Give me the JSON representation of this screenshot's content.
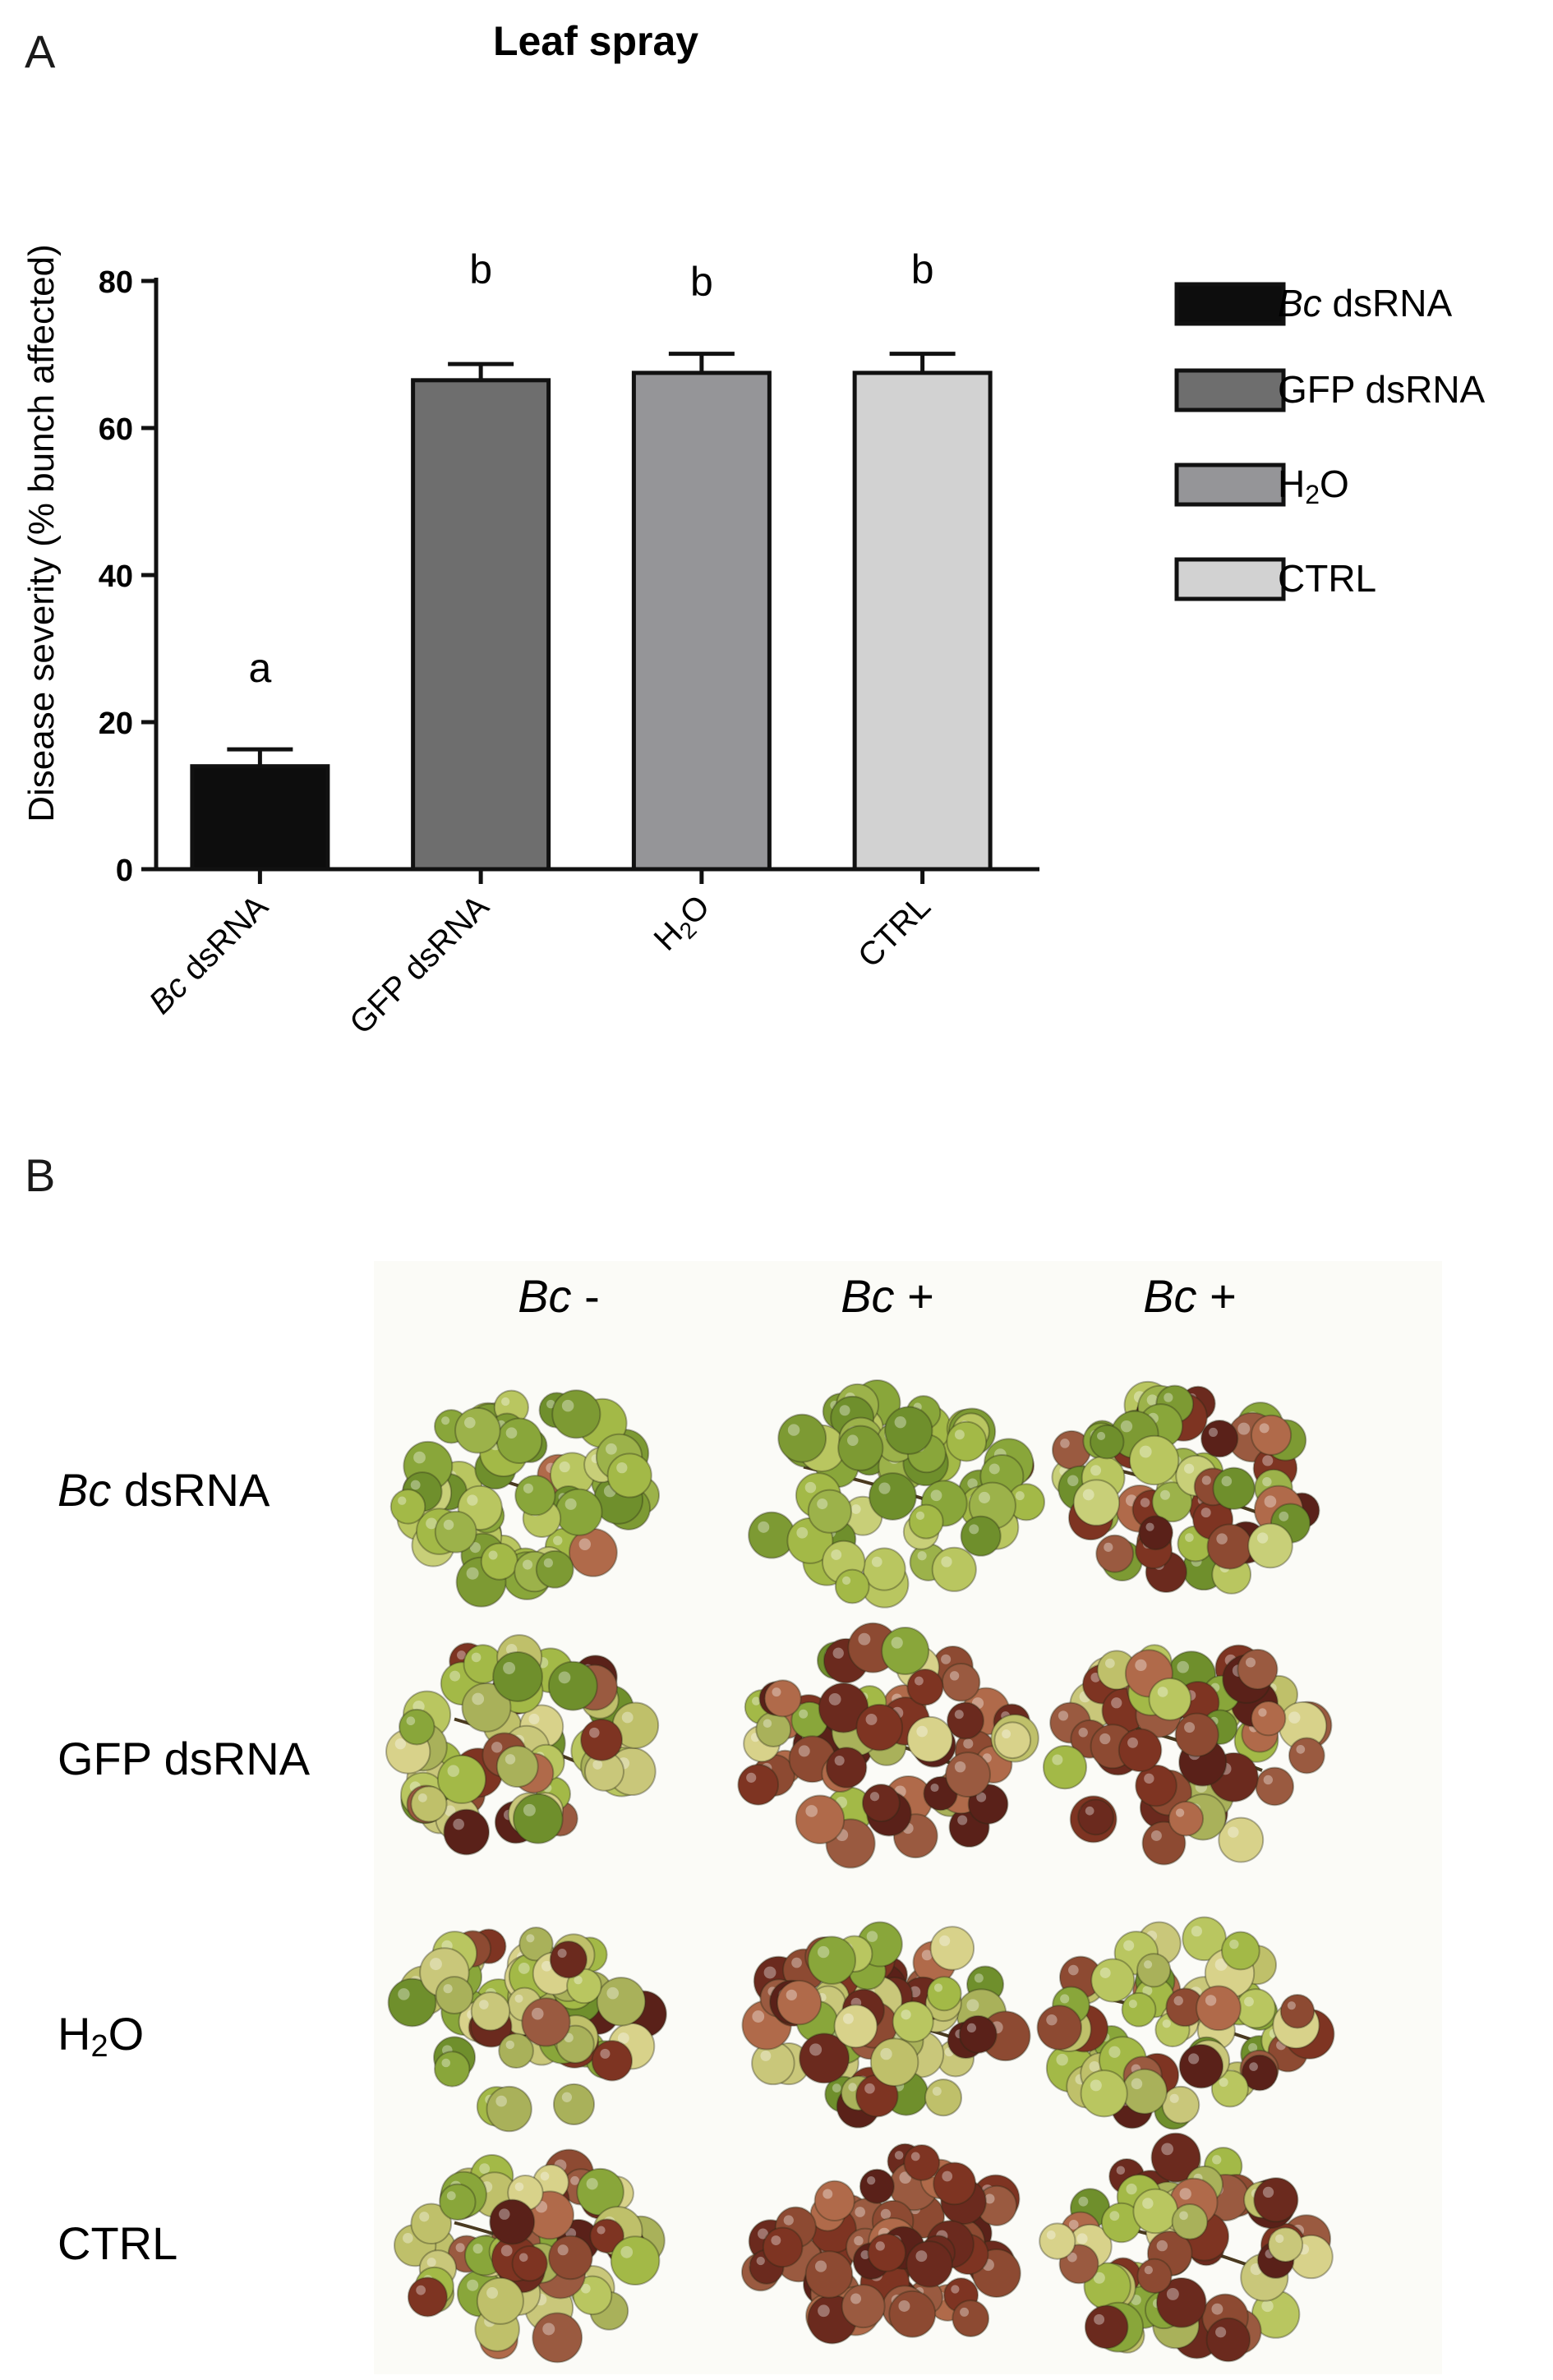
{
  "panel_a": {
    "letter": "A",
    "chart_data": {
      "type": "bar",
      "title": "Leaf spray",
      "xlabel": "",
      "ylabel": "Disease severity (% bunch affected)",
      "ylim": [
        0,
        80
      ],
      "yticks": [
        0,
        20,
        40,
        60,
        80
      ],
      "grid": false,
      "legend_position": "right",
      "categories": [
        {
          "label": "Bc dsRNA",
          "italic_part": "Bc",
          "rest": " dsRNA"
        },
        {
          "label": "GFP dsRNA",
          "italic_part": "",
          "rest": "GFP dsRNA"
        },
        {
          "label": "H2O",
          "italic_part": "",
          "rest": "H",
          "sub": "2",
          "tail": "O"
        },
        {
          "label": "CTRL",
          "italic_part": "",
          "rest": "CTRL"
        }
      ],
      "values": [
        14,
        66.5,
        67.5,
        67.5
      ],
      "errors": [
        2.3,
        2.2,
        2.6,
        2.6
      ],
      "significance": [
        "a",
        "b",
        "b",
        "b"
      ],
      "colors": [
        "#0d0d0d",
        "#6e6e6e",
        "#959598",
        "#d2d2d2"
      ]
    }
  },
  "panel_b": {
    "letter": "B",
    "columns": [
      {
        "italic": "Bc",
        "rest": " -"
      },
      {
        "italic": "Bc",
        "rest": " +"
      },
      {
        "italic": "Bc",
        "rest": " +"
      }
    ],
    "rows": [
      {
        "italic": "Bc",
        "rest": " dsRNA"
      },
      {
        "italic": "",
        "rest": "GFP dsRNA"
      },
      {
        "italic": "",
        "rest": "H",
        "sub": "2",
        "tail": "O"
      },
      {
        "italic": "",
        "rest": "CTRL"
      }
    ]
  }
}
